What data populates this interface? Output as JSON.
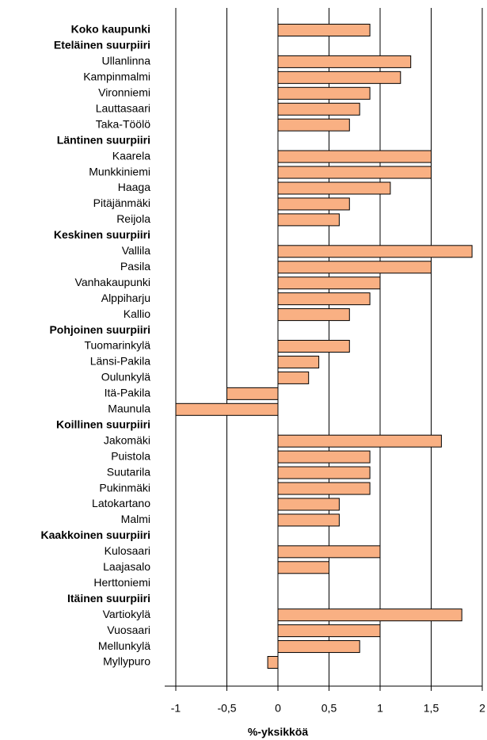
{
  "chart_data": {
    "type": "bar",
    "orientation": "horizontal",
    "x_label": "%-yksikköä",
    "categories": [
      "Koko kaupunki",
      "Eteläinen suurpiiri",
      "Ullanlinna",
      "Kampinmalmi",
      "Vironniemi",
      "Lauttasaari",
      "Taka-Töölö",
      "Läntinen suurpiiri",
      "Kaarela",
      "Munkkiniemi",
      "Haaga",
      "Pitäjänmäki",
      "Reijola",
      "Keskinen suurpiiri",
      "Vallila",
      "Pasila",
      "Vanhakaupunki",
      "Alppiharju",
      "Kallio",
      "Pohjoinen suurpiiri",
      "Tuomarinkylä",
      "Länsi-Pakila",
      "Oulunkylä",
      "Itä-Pakila",
      "Maunula",
      "Koillinen suurpiiri",
      "Jakomäki",
      "Puistola",
      "Suutarila",
      "Pukinmäki",
      "Latokartano",
      "Malmi",
      "Kaakkoinen suurpiiri",
      "Kulosaari",
      "Laajasalo",
      "Herttoniemi",
      "Itäinen suurpiiri",
      "Vartiokylä",
      "Vuosaari",
      "Mellunkylä",
      "Myllypuro"
    ],
    "bold": [
      true,
      true,
      false,
      false,
      false,
      false,
      false,
      true,
      false,
      false,
      false,
      false,
      false,
      true,
      false,
      false,
      false,
      false,
      false,
      true,
      false,
      false,
      false,
      false,
      false,
      true,
      false,
      false,
      false,
      false,
      false,
      false,
      true,
      false,
      false,
      false,
      true,
      false,
      false,
      false,
      false
    ],
    "values": [
      0.9,
      null,
      1.3,
      1.2,
      0.9,
      0.8,
      0.7,
      null,
      1.5,
      1.5,
      1.1,
      0.7,
      0.6,
      null,
      1.9,
      1.5,
      1.0,
      0.9,
      0.7,
      null,
      0.7,
      0.4,
      0.3,
      -0.5,
      -1.0,
      null,
      1.6,
      0.9,
      0.9,
      0.9,
      0.6,
      0.6,
      null,
      1.0,
      0.5,
      0,
      null,
      1.8,
      1.0,
      0.8,
      -0.1
    ],
    "color": "#f9b083",
    "xlim": [
      -1,
      2
    ],
    "xticks": [
      -1,
      {
        "value": -0.5,
        "label": "-0,5"
      },
      0,
      {
        "value": 0.5,
        "label": "0,5"
      },
      1,
      {
        "value": 1.5,
        "label": "1,5"
      },
      2
    ],
    "grid": true
  }
}
